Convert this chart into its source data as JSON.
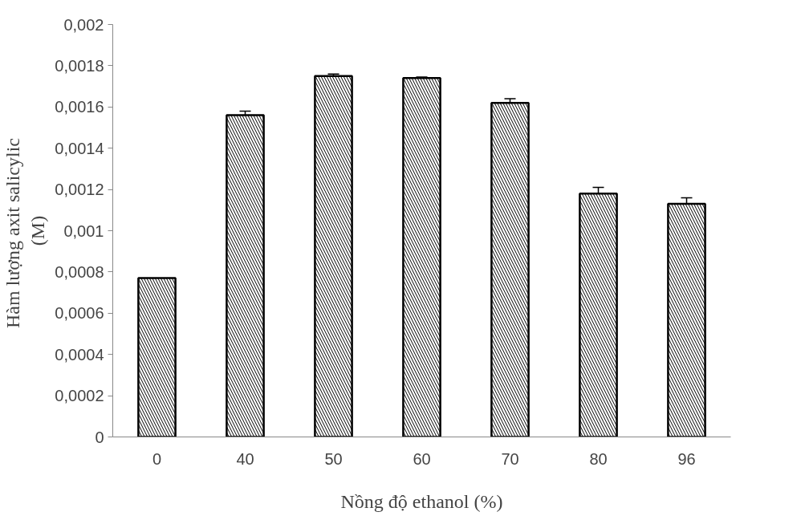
{
  "chart_data": {
    "type": "bar",
    "xlabel": "Nồng độ ethanol (%)",
    "ylabel": "Hàm lượng  axit salicylic\n(M)",
    "categories": [
      "0",
      "40",
      "50",
      "60",
      "70",
      "80",
      "96"
    ],
    "values": [
      0.00077,
      0.00156,
      0.00175,
      0.00174,
      0.00162,
      0.00118,
      0.00113
    ],
    "errors": [
      null,
      2e-05,
      1e-05,
      5e-06,
      2e-05,
      3e-05,
      3e-05
    ],
    "color": "#000000",
    "ylim": [
      0,
      0.002
    ],
    "yticks": [
      0,
      {
        "value": 0.0002,
        "label": "0,0002"
      },
      {
        "value": 0.0004,
        "label": "0,0004"
      },
      {
        "value": 0.0006,
        "label": "0,0006"
      },
      {
        "value": 0.0008,
        "label": "0,0008"
      },
      {
        "value": 0.001,
        "label": "0,001"
      },
      {
        "value": 0.0012,
        "label": "0,0012"
      },
      {
        "value": 0.0014,
        "label": "0,0014"
      },
      {
        "value": 0.0016,
        "label": "0,0016"
      },
      {
        "value": 0.0018,
        "label": "0,0018"
      },
      {
        "value": 0.002,
        "label": "0,002"
      }
    ],
    "grid": false
  }
}
